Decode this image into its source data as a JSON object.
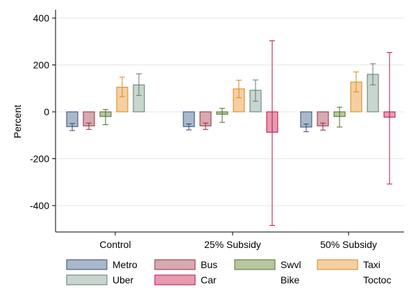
{
  "chart_data": {
    "type": "bar",
    "ylabel": "Percent",
    "ylim": [
      -510,
      420
    ],
    "yticks": [
      400,
      200,
      0,
      -200,
      -400
    ],
    "grid": true,
    "legend_position": "bottom",
    "categories": [
      "Control",
      "25% Subsidy",
      "50% Subsidy"
    ],
    "series": [
      {
        "name": "Metro",
        "fill": "#a9b8cb",
        "stroke": "#2d4a6e",
        "values": [
          -63,
          -63,
          -65
        ],
        "ci": [
          [
            -80,
            -50
          ],
          [
            -77,
            -52
          ],
          [
            -85,
            -52
          ]
        ]
      },
      {
        "name": "Bus",
        "fill": "#d7a9b1",
        "stroke": "#8f2d3b",
        "values": [
          -60,
          -60,
          -60
        ],
        "ci": [
          [
            -75,
            -48
          ],
          [
            -75,
            -48
          ],
          [
            -78,
            -48
          ]
        ]
      },
      {
        "name": "Swvl",
        "fill": "#b7c79f",
        "stroke": "#4f6b2a",
        "values": [
          -20,
          -10,
          -20
        ],
        "ci": [
          [
            -55,
            10
          ],
          [
            -45,
            15
          ],
          [
            -65,
            20
          ]
        ]
      },
      {
        "name": "Taxi",
        "fill": "#f5cfa1",
        "stroke": "#d4881a",
        "values": [
          105,
          98,
          127
        ],
        "ci": [
          [
            65,
            148
          ],
          [
            60,
            135
          ],
          [
            85,
            170
          ]
        ]
      },
      {
        "name": "Uber",
        "fill": "#c8d6cf",
        "stroke": "#5c7a6c",
        "values": [
          115,
          92,
          160
        ],
        "ci": [
          [
            70,
            162
          ],
          [
            45,
            136
          ],
          [
            115,
            205
          ]
        ]
      },
      {
        "name": "Car",
        "fill": "#e99aae",
        "stroke": "#b0124a",
        "values": [
          null,
          -87,
          -23
        ],
        "ci": [
          null,
          [
            -485,
            303
          ],
          [
            -308,
            253
          ]
        ]
      }
    ],
    "legend_extra": [
      "Bike",
      "Toctoc"
    ]
  }
}
